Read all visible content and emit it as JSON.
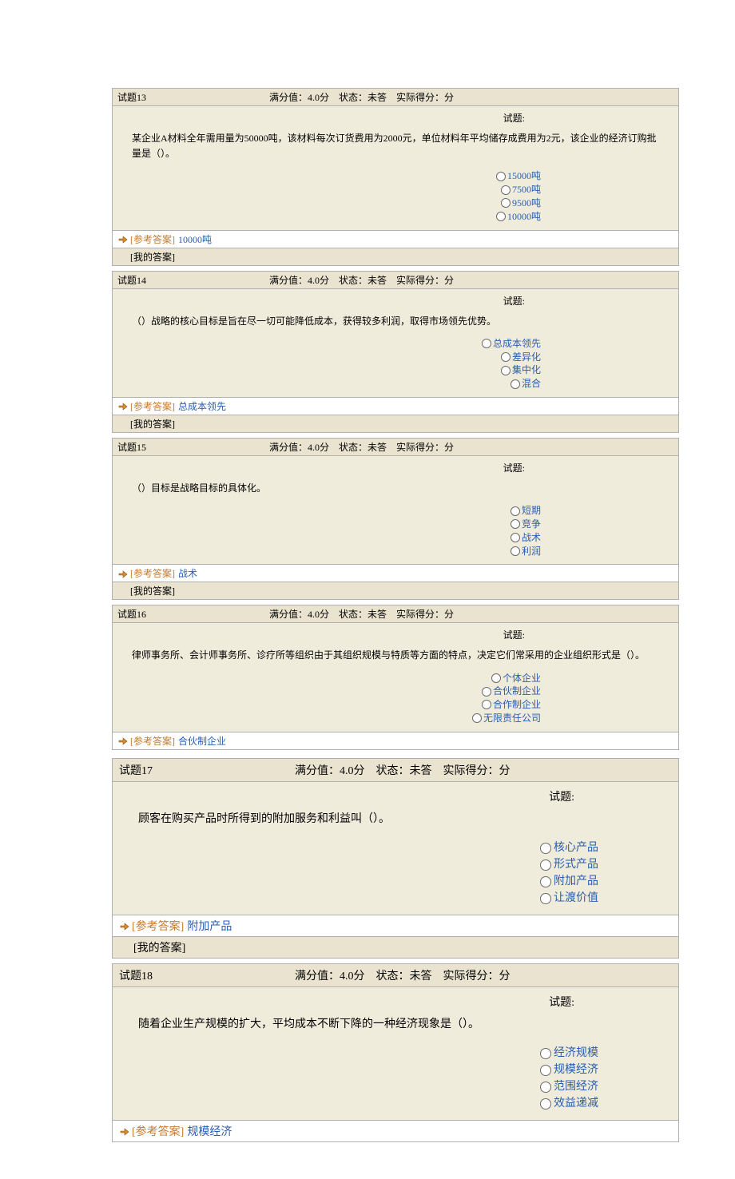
{
  "colors": {
    "header_bg": "#e9e3cf",
    "body_bg": "#f0ecdc",
    "border": "#b0b0b0",
    "link": "#2a5db0",
    "answer_label": "#c47a2e",
    "hand_fill": "#d98b2e",
    "hand_stroke": "#8a5210"
  },
  "labels": {
    "full_score_prefix": "满分值：",
    "full_score_suffix": "分",
    "status_prefix": "状态：",
    "actual_prefix": "实际得分：",
    "actual_suffix": "分",
    "topic": "试题:",
    "ref_answer": "[参考答案]",
    "my_answer": "[我的答案]"
  },
  "questions": [
    {
      "num": "试题13",
      "score": "4.0",
      "status": "未答",
      "actual": "",
      "text": "某企业A材料全年需用量为50000吨，该材料每次订货费用为2000元，单位材料年平均储存成费用为2元，该企业的经济订购批量是（）。",
      "options": [
        "15000吨",
        "7500吨",
        "9500吨",
        "10000吨"
      ],
      "answer": "10000吨",
      "show_my": true,
      "large": false
    },
    {
      "num": "试题14",
      "score": "4.0",
      "status": "未答",
      "actual": "",
      "text": "（）战略的核心目标是旨在尽一切可能降低成本，获得较多利润，取得市场领先优势。",
      "options": [
        "总成本领先",
        "差异化",
        "集中化",
        "混合"
      ],
      "answer": "总成本领先",
      "show_my": true,
      "large": false
    },
    {
      "num": "试题15",
      "score": "4.0",
      "status": "未答",
      "actual": "",
      "text": "（）目标是战略目标的具体化。",
      "options": [
        "短期",
        "竞争",
        "战术",
        "利润"
      ],
      "answer": "战术",
      "show_my": true,
      "large": false
    },
    {
      "num": "试题16",
      "score": "4.0",
      "status": "未答",
      "actual": "",
      "text": "律师事务所、会计师事务所、诊疗所等组织由于其组织规模与特质等方面的特点，决定它们常采用的企业组织形式是（）。",
      "options": [
        "个体企业",
        "合伙制企业",
        "合作制企业",
        "无限责任公司"
      ],
      "answer": "合伙制企业",
      "show_my": false,
      "large": false
    },
    {
      "num": "试题17",
      "score": "4.0",
      "status": "未答",
      "actual": "",
      "text": "顾客在购买产品时所得到的附加服务和利益叫（）。",
      "options": [
        "核心产品",
        "形式产品",
        "附加产品",
        "让渡价值"
      ],
      "answer": "附加产品",
      "show_my": true,
      "large": true
    },
    {
      "num": "试题18",
      "score": "4.0",
      "status": "未答",
      "actual": "",
      "text": "随着企业生产规模的扩大，平均成本不断下降的一种经济现象是（）。",
      "options": [
        "经济规模",
        "规模经济",
        "范围经济",
        "效益递减"
      ],
      "answer": "规模经济",
      "show_my": false,
      "large": true
    }
  ]
}
